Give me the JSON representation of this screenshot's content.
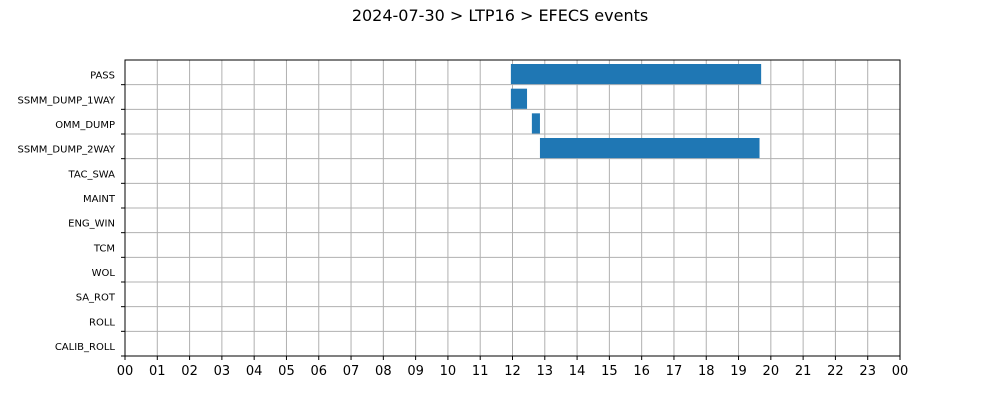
{
  "chart_data": {
    "type": "bar",
    "orientation": "horizontal",
    "title": "2024-07-30 > LTP16 > EFECS events",
    "xlabel": "",
    "ylabel": "",
    "x_unit": "hour",
    "xlim": [
      0,
      24
    ],
    "x_tick_labels": [
      "00",
      "01",
      "02",
      "03",
      "04",
      "05",
      "06",
      "07",
      "08",
      "09",
      "10",
      "11",
      "12",
      "13",
      "14",
      "15",
      "16",
      "17",
      "18",
      "19",
      "20",
      "21",
      "22",
      "23",
      "00"
    ],
    "categories": [
      "PASS",
      "SSMM_DUMP_1WAY",
      "OMM_DUMP",
      "SSMM_DUMP_2WAY",
      "TAC_SWA",
      "MAINT",
      "ENG_WIN",
      "TCM",
      "WOL",
      "SA_ROT",
      "ROLL",
      "CALIB_ROLL"
    ],
    "events": [
      {
        "category": "PASS",
        "start": 11.95,
        "end": 19.7
      },
      {
        "category": "SSMM_DUMP_1WAY",
        "start": 11.95,
        "end": 12.45
      },
      {
        "category": "OMM_DUMP",
        "start": 12.6,
        "end": 12.85
      },
      {
        "category": "SSMM_DUMP_2WAY",
        "start": 12.85,
        "end": 19.65
      }
    ],
    "bar_color": "#1f77b4",
    "grid": true,
    "legend": "none"
  }
}
